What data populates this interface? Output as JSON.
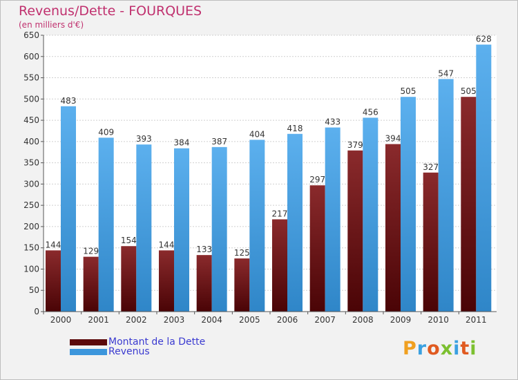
{
  "header": {
    "title": "Revenus/Dette - FOURQUES",
    "subtitle": "(en milliers d'€)"
  },
  "colors": {
    "debt": "#7a1416",
    "revenue": "#4aa3e2",
    "title": "#c0306e",
    "legend_text": "#3a3ad0"
  },
  "legend": [
    {
      "label": "Montant de la Dette",
      "color": "#5c0a0c"
    },
    {
      "label": "Revenus",
      "color": "#3c96dc"
    }
  ],
  "logo": {
    "letters": [
      "P",
      "r",
      "o",
      "x",
      "i",
      "t",
      "i"
    ],
    "colors": [
      "#f0a020",
      "#3aa0e0",
      "#e05a20",
      "#7cc030",
      "#3aa0e0",
      "#e05a20",
      "#7cc030"
    ]
  },
  "chart_data": {
    "type": "bar",
    "categories": [
      "2000",
      "2001",
      "2002",
      "2003",
      "2004",
      "2005",
      "2006",
      "2007",
      "2008",
      "2009",
      "2010",
      "2011"
    ],
    "series": [
      {
        "name": "Montant de la Dette",
        "values": [
          144,
          129,
          154,
          144,
          133,
          125,
          217,
          297,
          379,
          394,
          327,
          505
        ]
      },
      {
        "name": "Revenus",
        "values": [
          483,
          409,
          393,
          384,
          387,
          404,
          418,
          433,
          456,
          505,
          547,
          628
        ]
      }
    ],
    "title": "Revenus/Dette - FOURQUES",
    "ylabel": "(en milliers d'€)",
    "ylim": [
      0,
      650
    ],
    "yticks": [
      0,
      50,
      100,
      150,
      200,
      250,
      300,
      350,
      400,
      450,
      500,
      550,
      600,
      650
    ],
    "grid": true,
    "legend_position": "bottom-left"
  }
}
